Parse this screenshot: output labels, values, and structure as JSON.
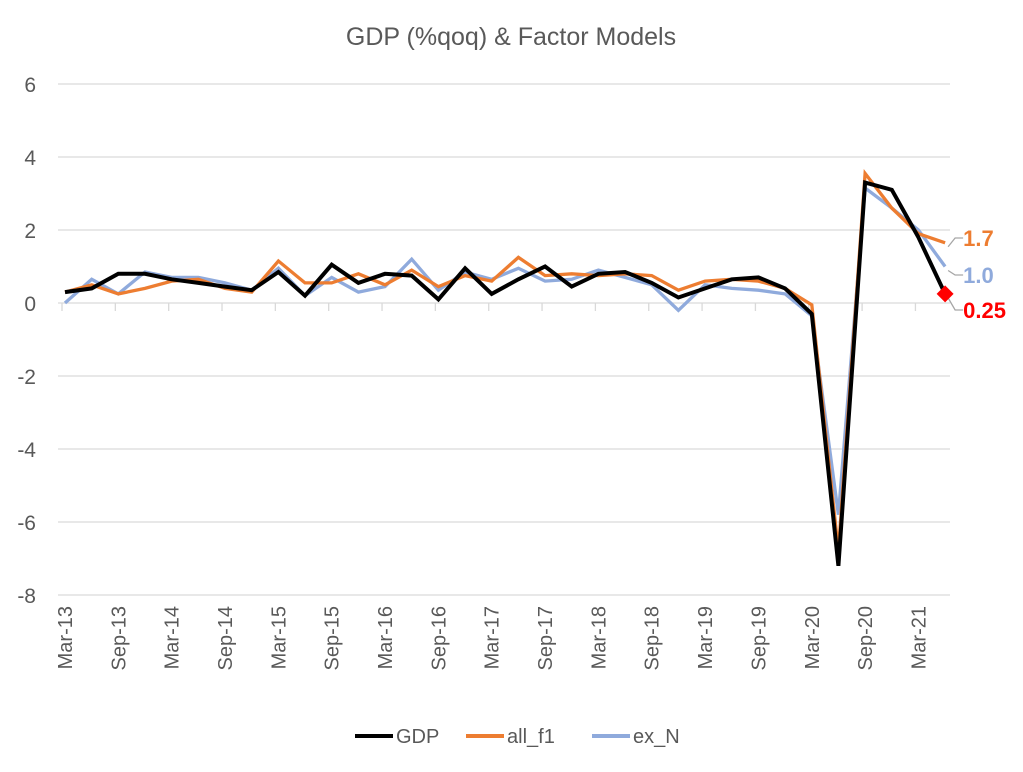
{
  "chart_data": {
    "type": "line",
    "title": "GDP (%qoq) & Factor Models",
    "xlabel": "",
    "ylabel": "",
    "ylim": [
      -8,
      6
    ],
    "yticks": [
      -8,
      -6,
      -4,
      -2,
      0,
      2,
      4,
      6
    ],
    "grid": true,
    "legend_position": "bottom",
    "categories": [
      "Mar-13",
      "Jun-13",
      "Sep-13",
      "Dec-13",
      "Mar-14",
      "Jun-14",
      "Sep-14",
      "Dec-14",
      "Mar-15",
      "Jun-15",
      "Sep-15",
      "Dec-15",
      "Mar-16",
      "Jun-16",
      "Sep-16",
      "Dec-16",
      "Mar-17",
      "Jun-17",
      "Sep-17",
      "Dec-17",
      "Mar-18",
      "Jun-18",
      "Sep-18",
      "Dec-18",
      "Mar-19",
      "Jun-19",
      "Sep-19",
      "Dec-19",
      "Mar-20",
      "Jun-20",
      "Sep-20",
      "Dec-20",
      "Mar-21",
      "Jun-21"
    ],
    "tick_labels": [
      "Mar-13",
      "Sep-13",
      "Mar-14",
      "Sep-14",
      "Mar-15",
      "Sep-15",
      "Mar-16",
      "Sep-16",
      "Mar-17",
      "Sep-17",
      "Mar-18",
      "Sep-18",
      "Mar-19",
      "Sep-19",
      "Mar-20",
      "Sep-20",
      "Mar-21"
    ],
    "series": [
      {
        "name": "GDP",
        "color": "#000000",
        "values": [
          0.3,
          0.4,
          0.8,
          0.8,
          0.65,
          0.55,
          0.45,
          0.35,
          0.85,
          0.2,
          1.05,
          0.55,
          0.8,
          0.75,
          0.1,
          0.95,
          0.25,
          0.65,
          1.0,
          0.45,
          0.8,
          0.85,
          0.55,
          0.15,
          0.4,
          0.65,
          0.7,
          0.4,
          -0.3,
          -7.2,
          3.3,
          3.1,
          1.8,
          0.25
        ]
      },
      {
        "name": "all_f1",
        "color": "#ED7D31",
        "values": [
          0.3,
          0.5,
          0.25,
          0.4,
          0.6,
          0.65,
          0.4,
          0.3,
          1.15,
          0.55,
          0.55,
          0.8,
          0.5,
          0.9,
          0.45,
          0.75,
          0.6,
          1.25,
          0.75,
          0.8,
          0.75,
          0.8,
          0.75,
          0.35,
          0.6,
          0.65,
          0.6,
          0.4,
          -0.05,
          -6.8,
          3.55,
          2.6,
          1.9,
          1.65
        ]
      },
      {
        "name": "ex_N",
        "color": "#8FAADC",
        "values": [
          0.0,
          0.65,
          0.25,
          0.85,
          0.7,
          0.7,
          0.55,
          0.35,
          0.95,
          0.2,
          0.7,
          0.3,
          0.45,
          1.2,
          0.35,
          0.85,
          0.65,
          0.95,
          0.6,
          0.65,
          0.9,
          0.7,
          0.5,
          -0.2,
          0.5,
          0.4,
          0.35,
          0.25,
          -0.35,
          -5.8,
          3.15,
          2.6,
          2.0,
          1.0
        ]
      }
    ],
    "annotations": [
      {
        "text": "1.7",
        "series": "all_f1",
        "color": "#ED7D31"
      },
      {
        "text": "1.0",
        "series": "ex_N",
        "color": "#8FAADC"
      },
      {
        "text": "0.25",
        "series": "GDP",
        "color": "#FF0000",
        "marker": "diamond"
      }
    ]
  }
}
